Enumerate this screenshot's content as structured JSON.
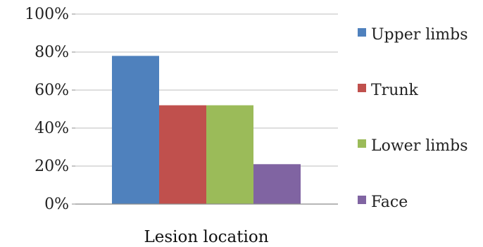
{
  "chart_data": {
    "type": "bar",
    "categories": [
      "Lesion location"
    ],
    "series": [
      {
        "name": "Upper limbs",
        "values": [
          78
        ],
        "color": "#4F81BD"
      },
      {
        "name": "Trunk",
        "values": [
          52
        ],
        "color": "#C0504D"
      },
      {
        "name": "Lower limbs",
        "values": [
          52
        ],
        "color": "#9BBB59"
      },
      {
        "name": "Face",
        "values": [
          21
        ],
        "color": "#8064A2"
      }
    ],
    "title": "",
    "xlabel": "Lesion location",
    "ylabel": "",
    "ylim": [
      0,
      100
    ],
    "y_unit": "%",
    "y_ticks": [
      "0%",
      "20%",
      "40%",
      "60%",
      "80%",
      "100%"
    ],
    "grid": true,
    "legend_position": "right"
  }
}
